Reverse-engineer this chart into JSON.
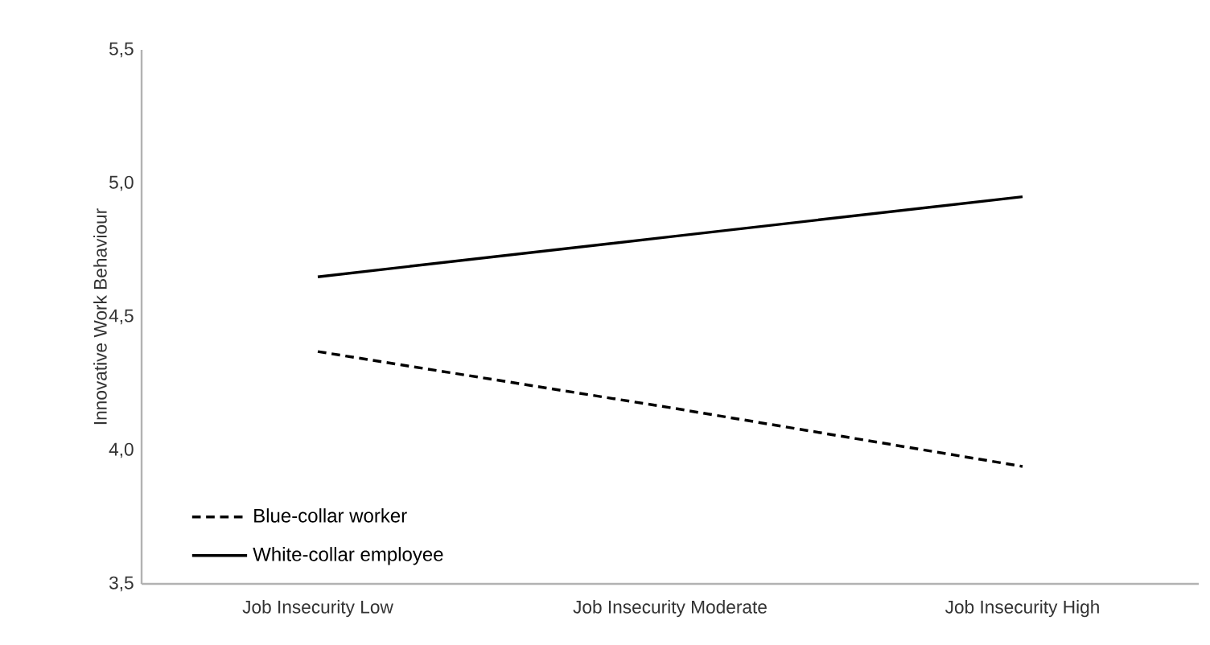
{
  "chart_data": {
    "type": "line",
    "ylabel": "Innovative Work Behaviour",
    "categories": [
      "Job Insecurity Low",
      "Job Insecurity Moderate",
      "Job Insecurity High"
    ],
    "series": [
      {
        "name": "Blue-collar worker",
        "color": "#000000",
        "line_style": "dashed",
        "values": [
          4.37,
          4.16,
          3.94
        ]
      },
      {
        "name": "White-collar employee",
        "color": "#000000",
        "line_style": "solid",
        "values": [
          4.65,
          4.8,
          4.95
        ]
      }
    ],
    "ylim": [
      3.5,
      5.5
    ],
    "yticks": [
      {
        "value": 3.5,
        "label": "3,5"
      },
      {
        "value": 4.0,
        "label": "4,0"
      },
      {
        "value": 4.5,
        "label": "4,5"
      },
      {
        "value": 5.0,
        "label": "5,0"
      },
      {
        "value": 5.5,
        "label": "5,5"
      }
    ],
    "grid": false,
    "legend": "bottom left",
    "marker": "none"
  }
}
